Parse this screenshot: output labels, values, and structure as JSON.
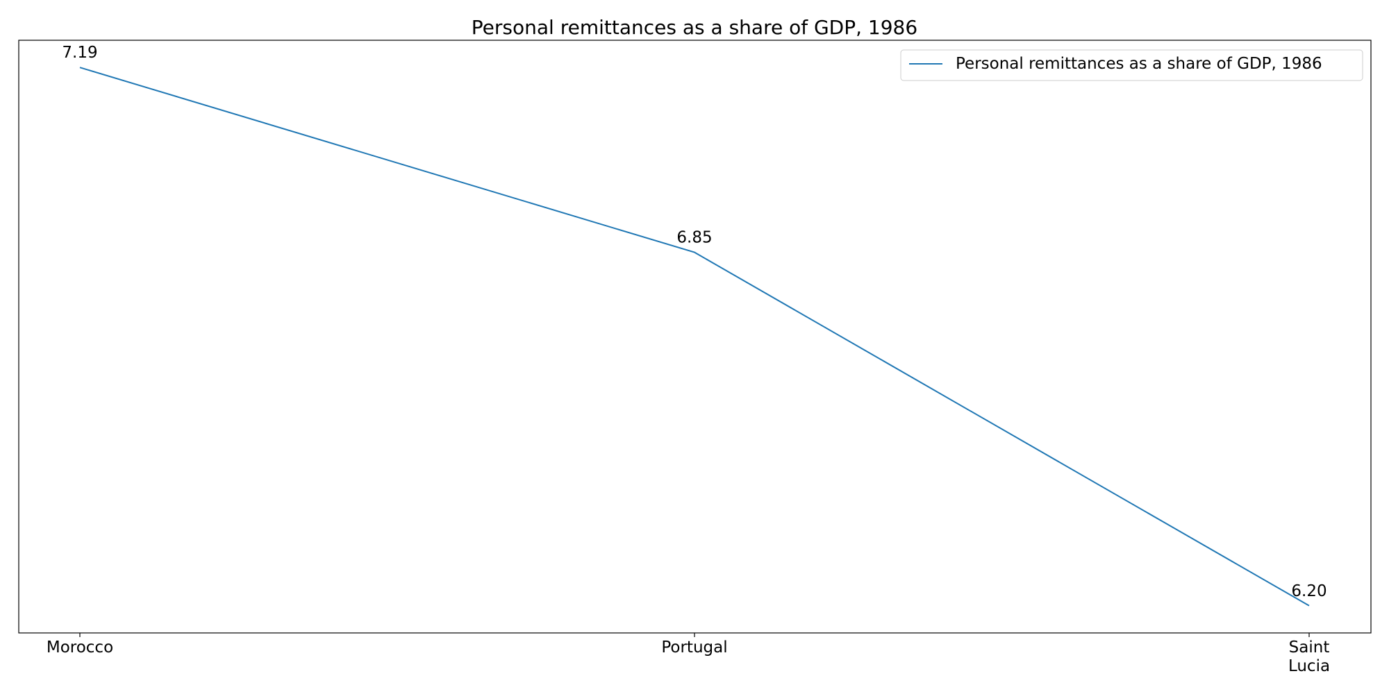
{
  "chart_data": {
    "type": "line",
    "title": "Personal remittances as a share of GDP, 1986",
    "xlabel": "",
    "ylabel": "",
    "categories": [
      "Morocco",
      "Portugal",
      "Saint Lucia"
    ],
    "category_tick_lines": [
      [
        "Morocco"
      ],
      [
        "Portugal"
      ],
      [
        "Saint",
        "Lucia"
      ]
    ],
    "series": [
      {
        "name": "Personal remittances as a share of GDP, 1986",
        "values": [
          7.19,
          6.85,
          6.2
        ],
        "labels": [
          "7.19",
          "6.85",
          "6.20"
        ],
        "color": "#1f77b4"
      }
    ],
    "ylim": [
      6.15,
      7.24
    ],
    "grid": false,
    "legend_position": "top-right",
    "y_ticks_visible": false
  }
}
